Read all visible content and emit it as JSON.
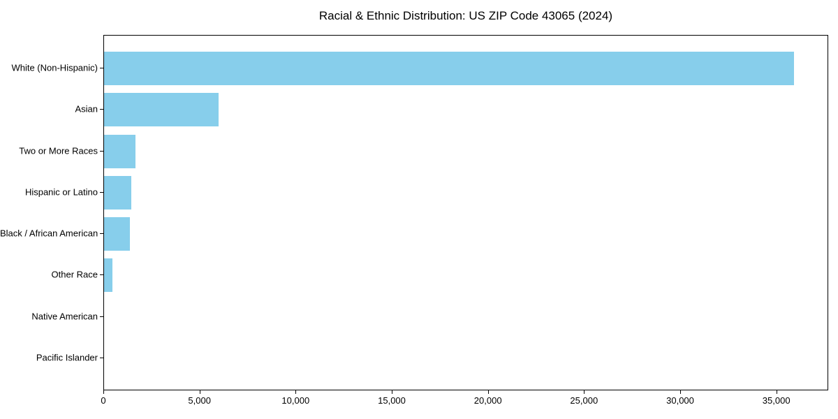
{
  "chart_data": {
    "type": "bar",
    "orientation": "horizontal",
    "title": "Racial & Ethnic Distribution: US ZIP Code 43065 (2024)",
    "categories": [
      "White (Non-Hispanic)",
      "Asian",
      "Two or More Races",
      "Hispanic or Latino",
      "Black / African American",
      "Other Race",
      "Native American",
      "Pacific Islander"
    ],
    "values": [
      35890,
      5940,
      1630,
      1410,
      1330,
      450,
      0,
      0
    ],
    "xlabel": "",
    "ylabel": "",
    "xlim": [
      0,
      37700
    ],
    "x_ticks": [
      0,
      5000,
      10000,
      15000,
      20000,
      25000,
      30000,
      35000
    ],
    "x_tick_labels": [
      "0",
      "5,000",
      "10,000",
      "15,000",
      "20,000",
      "25,000",
      "30,000",
      "35,000"
    ],
    "bar_color": "#87CEEB",
    "spine_color": "#000000",
    "text_color": "#000000",
    "background_color": "#ffffff",
    "grid": false,
    "legend": null
  }
}
